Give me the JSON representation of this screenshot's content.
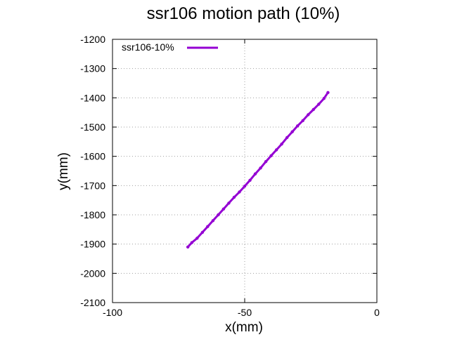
{
  "chart_data": {
    "type": "line",
    "title": "ssr106 motion path (10%)",
    "xlabel": "x(mm)",
    "ylabel": "y(mm)",
    "xlim": [
      -100,
      0
    ],
    "ylim": [
      -2100,
      -1200
    ],
    "xticks": [
      -100,
      -50,
      0
    ],
    "yticks": [
      -1200,
      -1300,
      -1400,
      -1500,
      -1600,
      -1700,
      -1800,
      -1900,
      -2000,
      -2100
    ],
    "grid": true,
    "legend_position": "top-left",
    "series": [
      {
        "name": "ssr106-10%",
        "color": "#9400d3",
        "x": [
          -71.5,
          -70,
          -68,
          -66,
          -64,
          -62,
          -60,
          -58,
          -56,
          -54,
          -52,
          -50,
          -48,
          -46,
          -44,
          -42,
          -40,
          -38,
          -36,
          -34,
          -32,
          -30,
          -28,
          -26,
          -24,
          -22,
          -20,
          -18.5
        ],
        "y": [
          -1910,
          -1895,
          -1880,
          -1860,
          -1840,
          -1820,
          -1800,
          -1780,
          -1760,
          -1740,
          -1722,
          -1702,
          -1682,
          -1660,
          -1640,
          -1618,
          -1598,
          -1578,
          -1558,
          -1536,
          -1516,
          -1496,
          -1478,
          -1458,
          -1440,
          -1422,
          -1402,
          -1382
        ]
      }
    ]
  }
}
